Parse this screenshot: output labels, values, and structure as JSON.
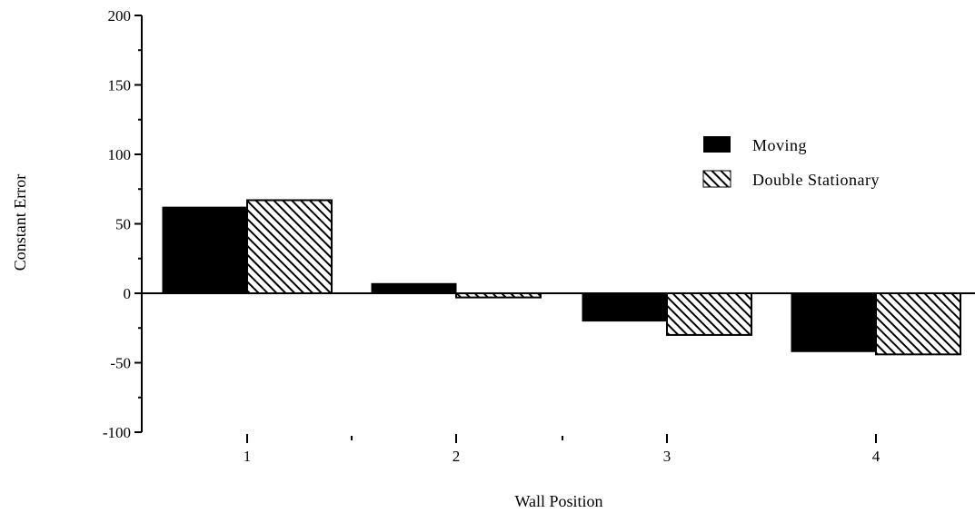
{
  "chart_data": {
    "type": "bar",
    "xlabel": "Wall Position",
    "ylabel": "Constant Error",
    "categories": [
      "1",
      "2",
      "3",
      "4"
    ],
    "series": [
      {
        "name": "Moving",
        "values": [
          62,
          7,
          -20,
          -42
        ],
        "fill": "solid",
        "color": "#000000"
      },
      {
        "name": "Double Stationary",
        "values": [
          67,
          -3,
          -30,
          -44
        ],
        "fill": "hatched",
        "color": "#000000"
      }
    ],
    "ylim": [
      -100,
      200
    ],
    "yticks": [
      -100,
      -50,
      0,
      50,
      100,
      150,
      200
    ],
    "legend_position": "right",
    "grid": false
  }
}
